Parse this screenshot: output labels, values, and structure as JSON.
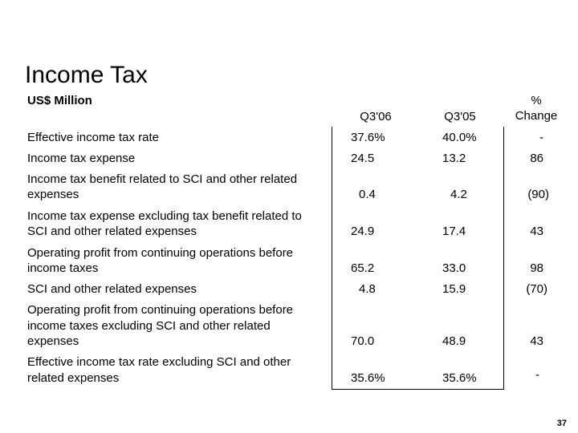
{
  "slide": {
    "title": "Income Tax",
    "units": "US$ Million",
    "page_number": "37"
  },
  "table": {
    "columns": [
      "Q3'06",
      "Q3'05",
      "%",
      "Change"
    ],
    "rows": [
      {
        "label_1": "Effective income tax rate",
        "label_2": "",
        "q306": "37.6%",
        "q305": "40.0%",
        "change": "-"
      },
      {
        "label_1": "Income tax expense",
        "label_2": "",
        "q306": "24.5",
        "q305": "13.2",
        "change": "86"
      },
      {
        "label_1": "Income tax benefit related to SCI and other related",
        "label_2": "expenses",
        "q306": "0.4",
        "q305": "4.2",
        "change": "(90)"
      },
      {
        "label_1": "Income tax expense excluding tax benefit related to",
        "label_2": "SCI and other related expenses",
        "q306": "24.9",
        "q305": "17.4",
        "change": "43"
      },
      {
        "label_1": "Operating profit from continuing operations before",
        "label_2": "income taxes",
        "q306": "65.2",
        "q305": "33.0",
        "change": "98"
      },
      {
        "label_1": "SCI and other related expenses",
        "label_2": "",
        "q306": "4.8",
        "q305": "15.9",
        "change": "(70)"
      },
      {
        "label_1": "Operating profit from continuing operations before",
        "label_2": "income taxes excluding SCI and other related",
        "label_3": "expenses",
        "q306": "70.0",
        "q305": "48.9",
        "change": "43"
      },
      {
        "label_1": "Effective income tax rate excluding SCI and other",
        "label_2": "related expenses",
        "q306": "35.6%",
        "q305": "35.6%",
        "change": "-"
      }
    ]
  }
}
